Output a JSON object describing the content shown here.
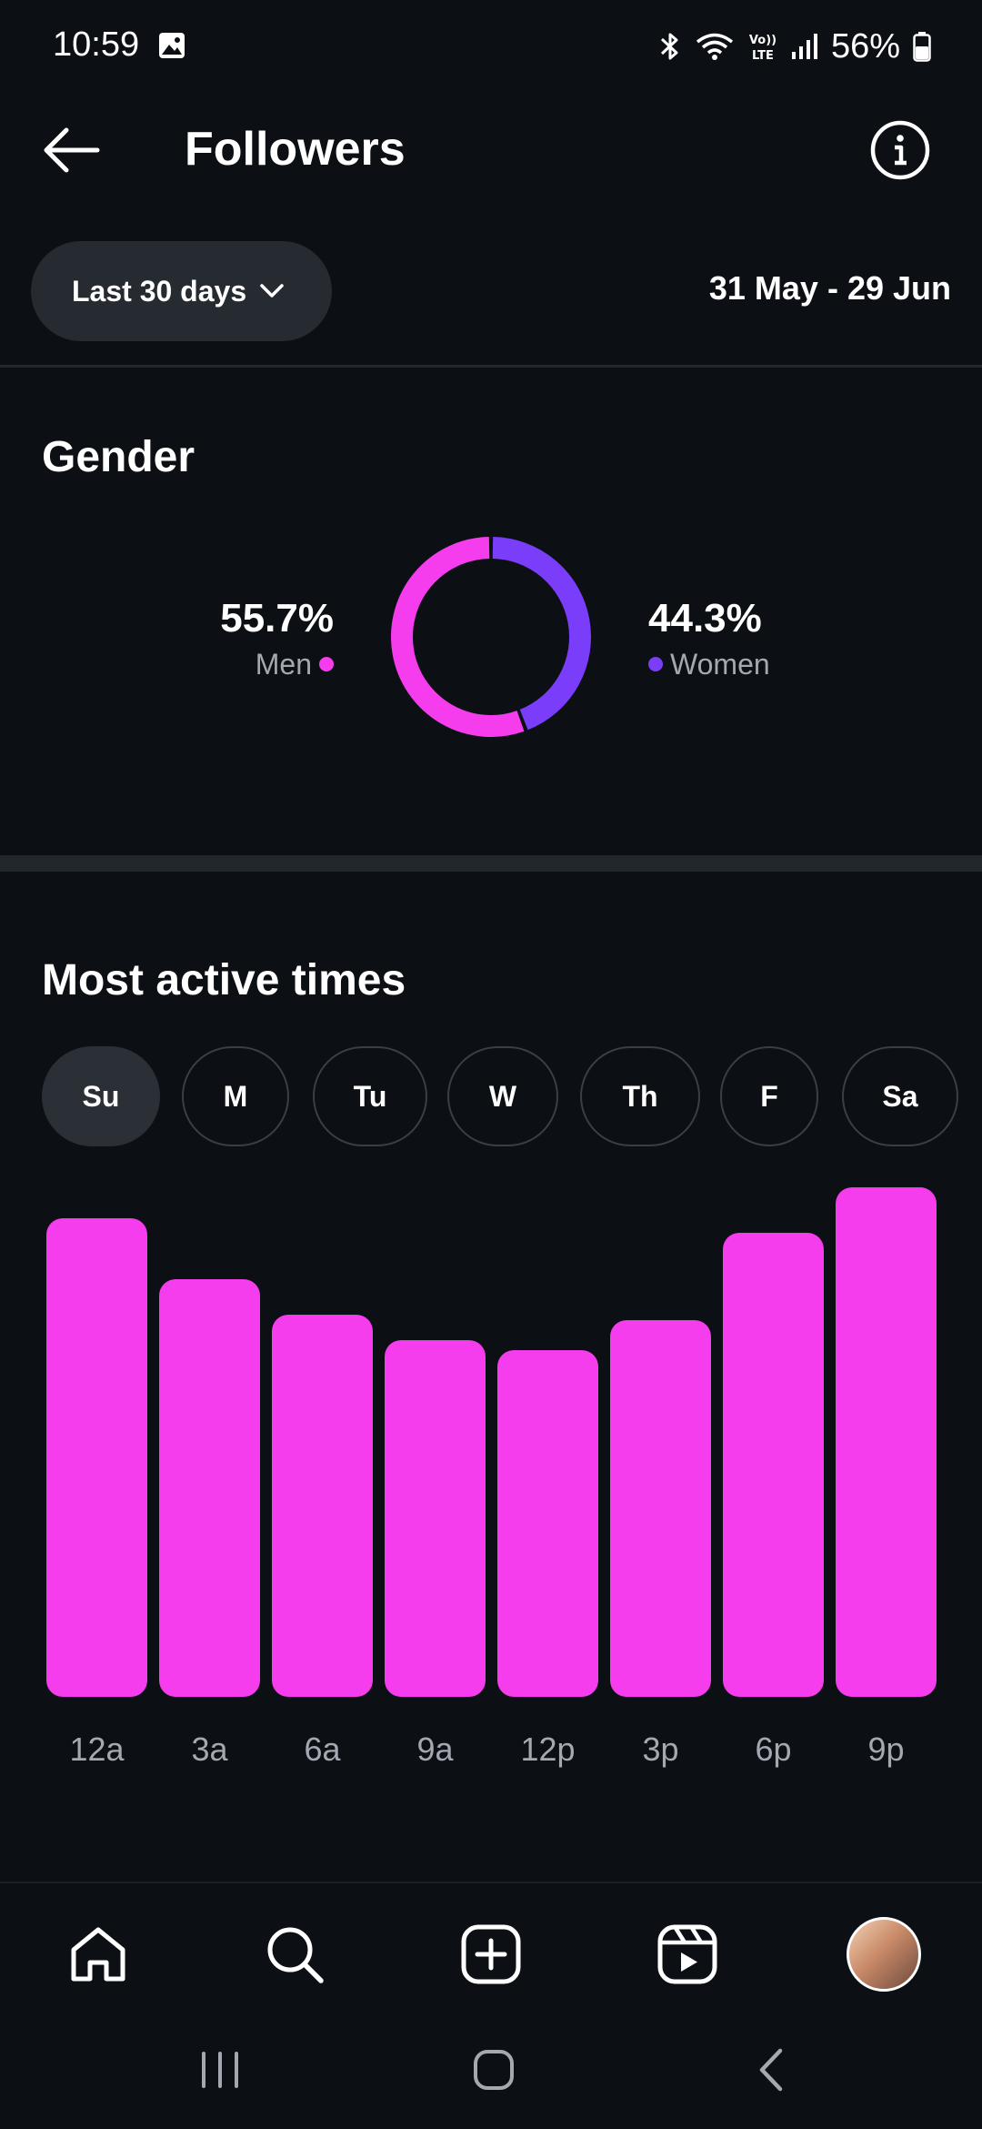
{
  "status_bar": {
    "time": "10:59",
    "battery": "56%",
    "icons": [
      "gallery-icon",
      "bluetooth-icon",
      "wifi-icon",
      "volte-icon",
      "signal-icon",
      "battery-icon"
    ]
  },
  "header": {
    "title": "Followers",
    "back_icon": "arrow-left-icon",
    "info_icon": "info-icon"
  },
  "filter": {
    "range_label": "Last 30 days",
    "date_range": "31 May - 29 Jun"
  },
  "gender": {
    "title": "Gender",
    "men": {
      "value": "55.7%",
      "label": "Men",
      "fraction": 0.557
    },
    "women": {
      "value": "44.3%",
      "label": "Women",
      "fraction": 0.443
    }
  },
  "active_times": {
    "title": "Most active times",
    "days": [
      "Su",
      "M",
      "Tu",
      "W",
      "Th",
      "F",
      "Sa"
    ],
    "selected_day": "Su"
  },
  "chart_data": {
    "type": "bar",
    "categories": [
      "12a",
      "3a",
      "6a",
      "9a",
      "12p",
      "3p",
      "6p",
      "9p"
    ],
    "values": [
      94,
      82,
      75,
      70,
      68,
      74,
      91,
      100
    ],
    "title": "",
    "xlabel": "",
    "ylabel": "",
    "ylim": [
      0,
      100
    ],
    "grid": false,
    "color": "#f53ded"
  },
  "colors": {
    "background": "#0c0f14",
    "men": "#f53ded",
    "women": "#7a3dfa",
    "pill": "#262a31"
  },
  "bottom_nav": {
    "items": [
      "home-icon",
      "search-icon",
      "create-icon",
      "reels-icon",
      "profile-avatar"
    ]
  },
  "system_nav": {
    "items": [
      "recents-icon",
      "home-button-icon",
      "back-icon"
    ]
  }
}
